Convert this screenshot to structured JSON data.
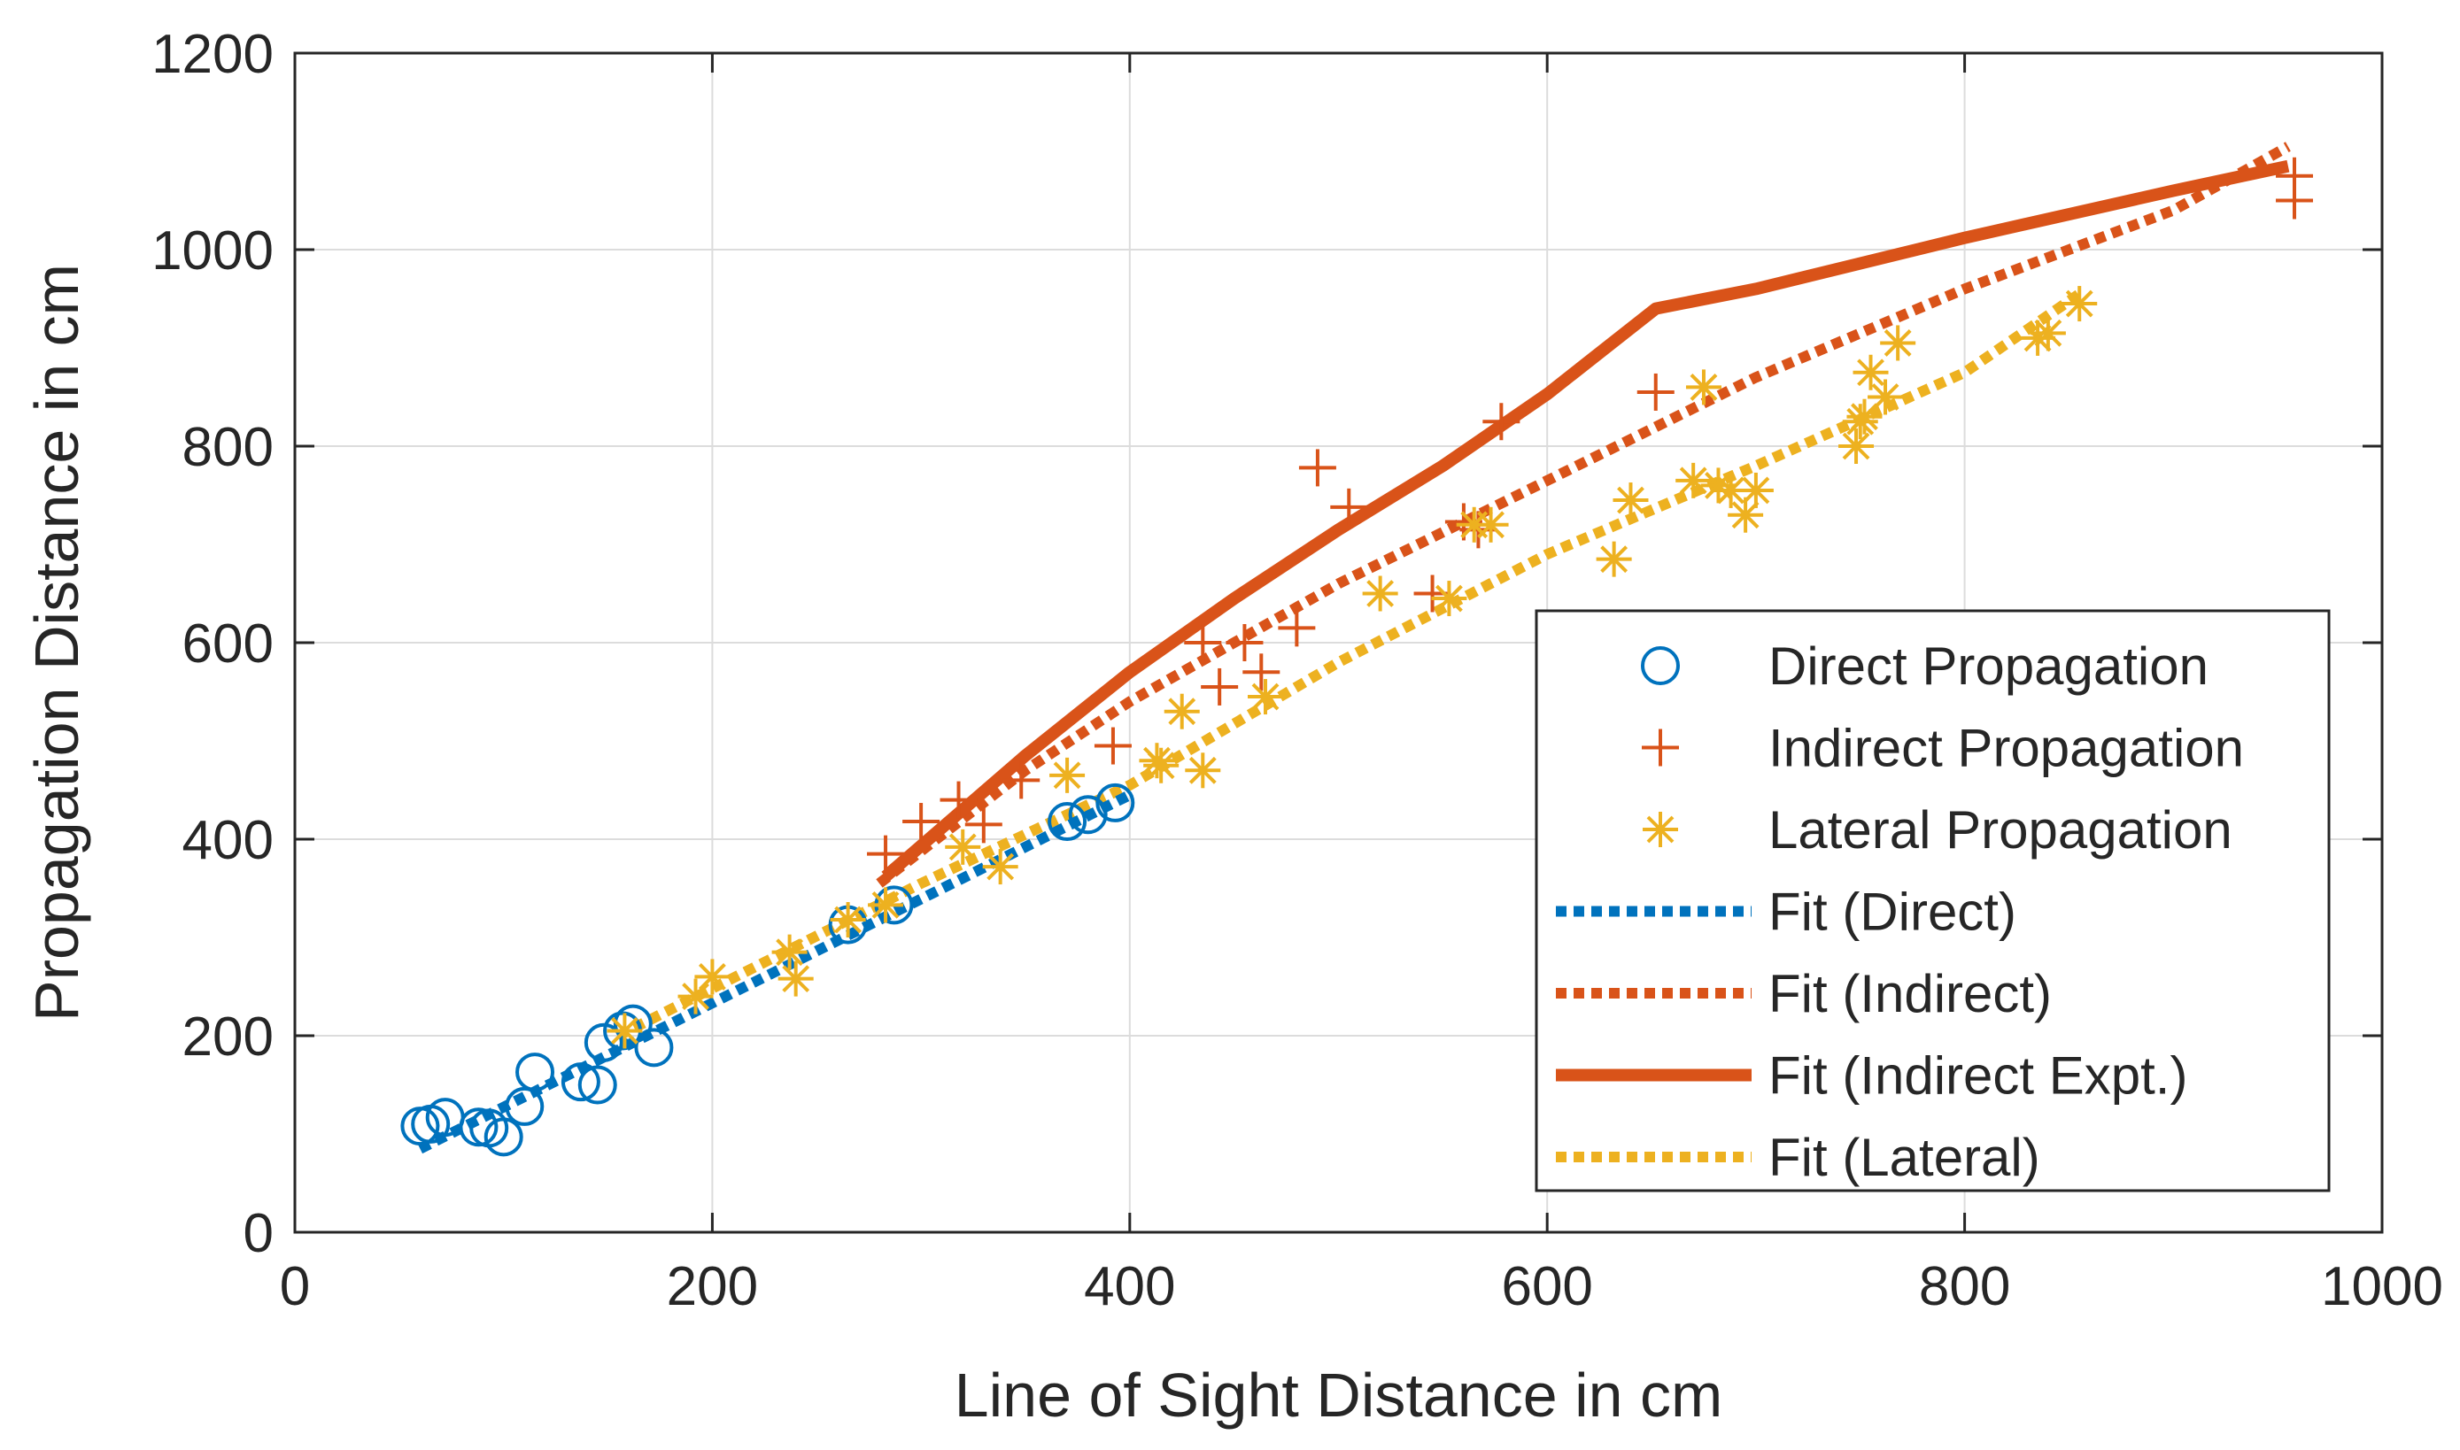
{
  "chart_data": {
    "type": "scatter",
    "title": "",
    "xlabel": "Line of Sight Distance in cm",
    "ylabel": "Propagation Distance in cm",
    "xlim": [
      0,
      1000
    ],
    "ylim": [
      0,
      1200
    ],
    "xticks": [
      0,
      200,
      400,
      600,
      800,
      1000
    ],
    "yticks": [
      0,
      200,
      400,
      600,
      800,
      1000,
      1200
    ],
    "xtick_labels": [
      "0",
      "200",
      "400",
      "600",
      "800",
      "1000"
    ],
    "ytick_labels": [
      "0",
      "200",
      "400",
      "600",
      "800",
      "1000",
      "1200"
    ],
    "grid": true,
    "legend_position": "bottom-right",
    "colors": {
      "direct": "#0072BD",
      "indirect": "#D95319",
      "lateral": "#EDB120",
      "axis": "#262626",
      "grid": "#dcdcdc"
    },
    "series": [
      {
        "key": "direct",
        "name": "Direct Propagation",
        "kind": "markers",
        "marker": "circle",
        "color": "#0072BD",
        "x": [
          60,
          65,
          72,
          88,
          93,
          100,
          110,
          115,
          137,
          145,
          148,
          157,
          162,
          172,
          265,
          287,
          370,
          380,
          393
        ],
        "y": [
          108,
          110,
          117,
          107,
          106,
          97,
          128,
          163,
          153,
          150,
          193,
          205,
          212,
          188,
          313,
          333,
          418,
          425,
          437
        ]
      },
      {
        "key": "indirect",
        "name": "Indirect Propagation",
        "kind": "markers",
        "marker": "plus",
        "color": "#D95319",
        "x": [
          283,
          300,
          318,
          330,
          348,
          392,
          435,
          443,
          455,
          463,
          480,
          490,
          505,
          545,
          560,
          567,
          578,
          652,
          958,
          958
        ],
        "y": [
          385,
          418,
          440,
          415,
          460,
          495,
          600,
          555,
          600,
          570,
          615,
          778,
          738,
          650,
          723,
          715,
          825,
          855,
          1050,
          1075
        ]
      },
      {
        "key": "lateral",
        "name": "Lateral Propagation",
        "kind": "markers",
        "marker": "asterisk",
        "color": "#EDB120",
        "x": [
          158,
          192,
          200,
          237,
          240,
          265,
          283,
          320,
          338,
          370,
          413,
          415,
          425,
          435,
          465,
          520,
          553,
          565,
          573,
          632,
          640,
          670,
          675,
          682,
          688,
          695,
          700,
          748,
          750,
          752,
          755,
          762,
          768,
          835,
          840,
          855
        ],
        "y": [
          205,
          240,
          260,
          285,
          258,
          318,
          333,
          392,
          372,
          465,
          480,
          475,
          530,
          470,
          545,
          650,
          645,
          720,
          720,
          685,
          745,
          765,
          860,
          760,
          755,
          730,
          755,
          800,
          825,
          830,
          875,
          850,
          905,
          910,
          915,
          945
        ]
      },
      {
        "key": "fit_direct",
        "name": "Fit (Direct)",
        "kind": "line",
        "style": "dotted",
        "color": "#0072BD",
        "x": [
          60,
          400
        ],
        "y": [
          85,
          445
        ]
      },
      {
        "key": "fit_indirect",
        "name": "Fit (Indirect)",
        "kind": "line",
        "style": "dotted",
        "color": "#D95319",
        "x": [
          280,
          350,
          400,
          500,
          600,
          700,
          800,
          900,
          955
        ],
        "y": [
          355,
          470,
          540,
          660,
          765,
          870,
          960,
          1040,
          1105
        ]
      },
      {
        "key": "fit_indirect_expt",
        "name": "Fit (Indirect Expt.)",
        "kind": "line",
        "style": "solid",
        "color": "#D95319",
        "x": [
          283,
          350,
          400,
          450,
          500,
          550,
          600,
          652,
          700,
          800,
          900,
          955
        ],
        "y": [
          362,
          485,
          570,
          645,
          715,
          780,
          853,
          940,
          960,
          1012,
          1060,
          1085
        ]
      },
      {
        "key": "fit_lateral",
        "name": "Fit (Lateral)",
        "kind": "line",
        "style": "dotted",
        "color": "#EDB120",
        "x": [
          155,
          300,
          400,
          500,
          600,
          700,
          800,
          855
        ],
        "y": [
          200,
          355,
          455,
          580,
          690,
          780,
          875,
          955
        ]
      }
    ]
  }
}
